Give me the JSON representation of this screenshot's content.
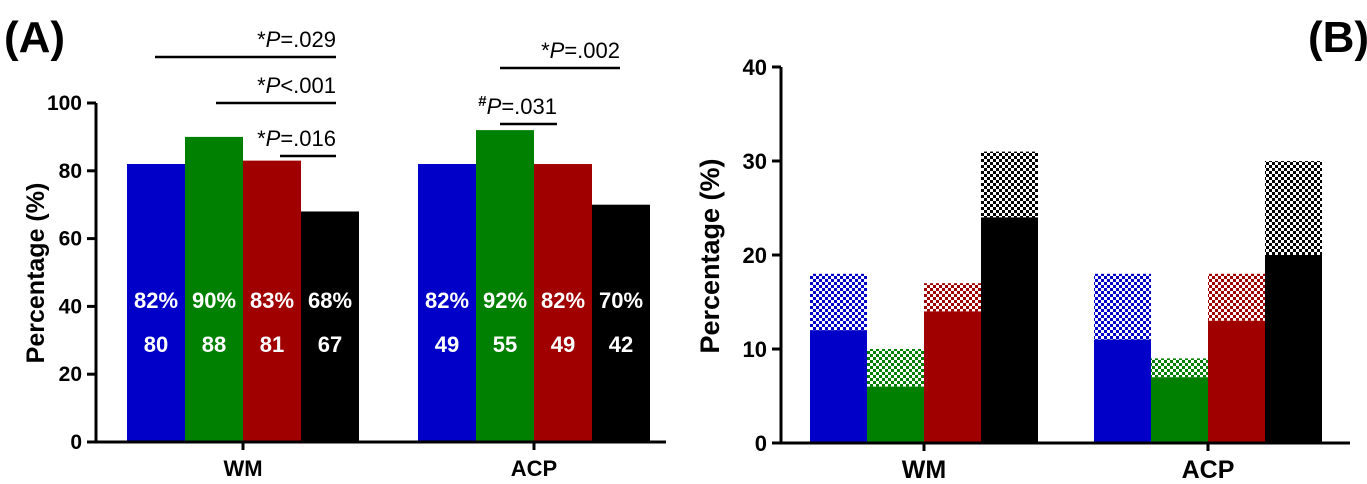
{
  "colors": {
    "blue": "#0000c8",
    "green": "#008000",
    "red": "#a00000",
    "black": "#000000"
  },
  "chart_data": [
    {
      "panel": "(A)",
      "type": "bar",
      "categories": [
        "WM",
        "ACP"
      ],
      "ylabel": "Percentage (%)",
      "ylim": [
        0,
        100
      ],
      "yticks": [
        0,
        20,
        40,
        60,
        80,
        100
      ],
      "series_colors": [
        "blue",
        "green",
        "red",
        "black"
      ],
      "groups": [
        {
          "category": "WM",
          "values": [
            82,
            90,
            83,
            68
          ],
          "pct_labels": [
            "82%",
            "90%",
            "83%",
            "68%"
          ],
          "n_labels": [
            "80",
            "88",
            "81",
            "67"
          ]
        },
        {
          "category": "ACP",
          "values": [
            82,
            92,
            82,
            70
          ],
          "pct_labels": [
            "82%",
            "92%",
            "82%",
            "70%"
          ],
          "n_labels": [
            "49",
            "55",
            "49",
            "42"
          ]
        }
      ],
      "significance": [
        {
          "group": 0,
          "from": 0,
          "to": 3,
          "marker": "*",
          "italic": "P",
          "rest": "=.029"
        },
        {
          "group": 0,
          "from": 1,
          "to": 3,
          "marker": "*",
          "italic": "P",
          "rest": "<.001"
        },
        {
          "group": 0,
          "from": 2,
          "to": 3,
          "marker": "*",
          "italic": "P",
          "rest": "=.016"
        },
        {
          "group": 1,
          "from": 1,
          "to": 3,
          "marker": "*",
          "italic": "P",
          "rest": "=.002"
        },
        {
          "group": 1,
          "from": 1,
          "to": 2,
          "marker": "#",
          "italic": "P",
          "rest": "=.031"
        }
      ]
    },
    {
      "panel": "(B)",
      "type": "bar",
      "stacked": true,
      "categories": [
        "WM",
        "ACP"
      ],
      "ylabel": "Percentage (%)",
      "ylim": [
        0,
        40
      ],
      "yticks": [
        0,
        10,
        20,
        30,
        40
      ],
      "series_colors": [
        "blue",
        "green",
        "red",
        "black"
      ],
      "groups": [
        {
          "category": "WM",
          "solid": [
            12,
            6,
            14,
            24
          ],
          "total": [
            18,
            10,
            17,
            31
          ]
        },
        {
          "category": "ACP",
          "solid": [
            11,
            7,
            13,
            20
          ],
          "total": [
            18,
            9,
            18,
            30
          ]
        }
      ]
    }
  ]
}
